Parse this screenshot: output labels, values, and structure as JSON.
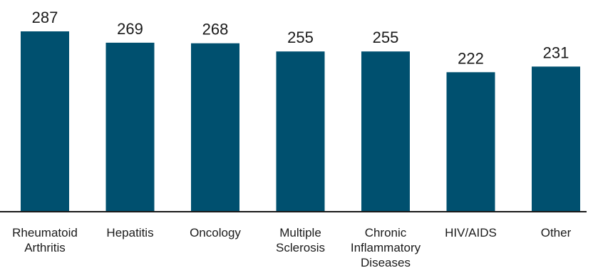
{
  "chart_data": {
    "type": "bar",
    "title": "",
    "xlabel": "",
    "ylabel": "",
    "categories": [
      [
        "Rheumatoid",
        "Arthritis"
      ],
      [
        "Hepatitis"
      ],
      [
        "Oncology"
      ],
      [
        "Multiple",
        "Sclerosis"
      ],
      [
        "Chronic",
        "Inflammatory",
        "Diseases"
      ],
      [
        "HIV/AIDS"
      ],
      [
        "Other"
      ]
    ],
    "values": [
      287,
      269,
      268,
      255,
      255,
      222,
      231
    ],
    "ylim": [
      0,
      287
    ],
    "grid": false,
    "legend": "none",
    "colors": {
      "bar": "#00506f",
      "axis": "#1a1a1a",
      "text": "#1a1a1a"
    }
  }
}
